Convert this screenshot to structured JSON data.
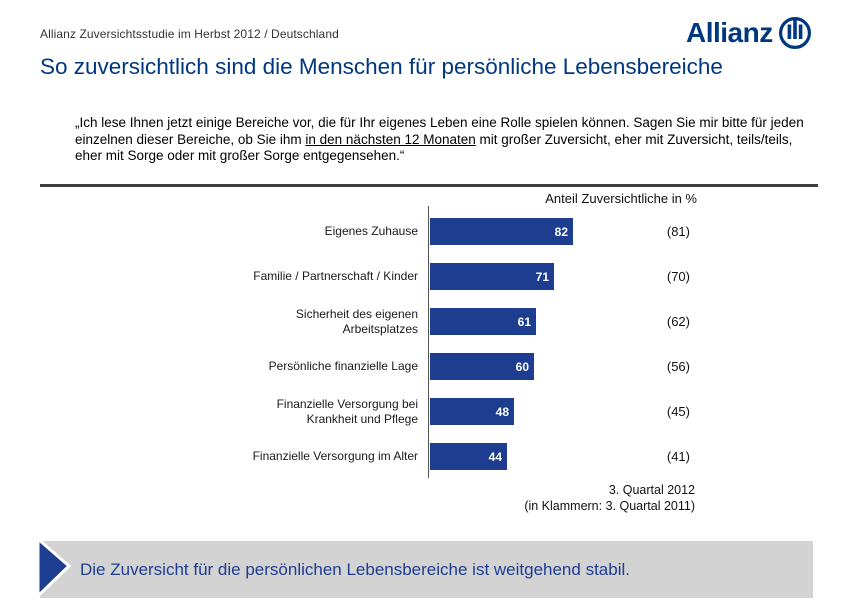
{
  "header": {
    "subtitle": "Allianz Zuversichtsstudie im Herbst 2012 / Deutschland",
    "logo_text": "Allianz",
    "brand_color": "#003781"
  },
  "title": "So zuversichtlich sind die Menschen für persönliche Lebensbereiche",
  "quote": {
    "part1": "„Ich lese Ihnen jetzt einige Bereiche vor, die für Ihr eigenes Leben eine Rolle spielen können. Sagen Sie mir bitte für jeden einzelnen dieser Bereiche, ob Sie ihm ",
    "underlined": "in den nächsten 12 Monaten",
    "part2": " mit großer Zuversicht, eher mit Zuversicht, teils/teils, eher mit Sorge oder mit großer Sorge entgegensehen.“"
  },
  "chart_data": {
    "type": "bar",
    "orientation": "horizontal",
    "title": "Anteil Zuversichtliche in %",
    "categories": [
      "Eigenes Zuhause",
      "Familie / Partnerschaft / Kinder",
      "Sicherheit des eigenen\nArbeitsplatzes",
      "Persönliche finanzielle Lage",
      "Finanzielle Versorgung bei\nKrankheit und Pflege",
      "Finanzielle Versorgung im Alter"
    ],
    "series": [
      {
        "name": "3. Quartal 2012",
        "values": [
          82,
          71,
          61,
          60,
          48,
          44
        ]
      },
      {
        "name": "3. Quartal 2011",
        "values": [
          81,
          70,
          62,
          56,
          45,
          41
        ]
      }
    ],
    "xlim": [
      0,
      100
    ],
    "bar_color": "#1d3d91",
    "value_label_color": "#ffffff",
    "second_series_format": "parentheses",
    "footnote_line1": "3. Quartal 2012",
    "footnote_line2": "(in Klammern: 3. Quartal 2011)"
  },
  "banner": {
    "text": "Die Zuversicht für die persönlichen Lebensbereiche ist weitgehend stabil.",
    "background": "#d3d3d3",
    "text_color": "#1d3d91",
    "arrow_color": "#1d3d91"
  }
}
